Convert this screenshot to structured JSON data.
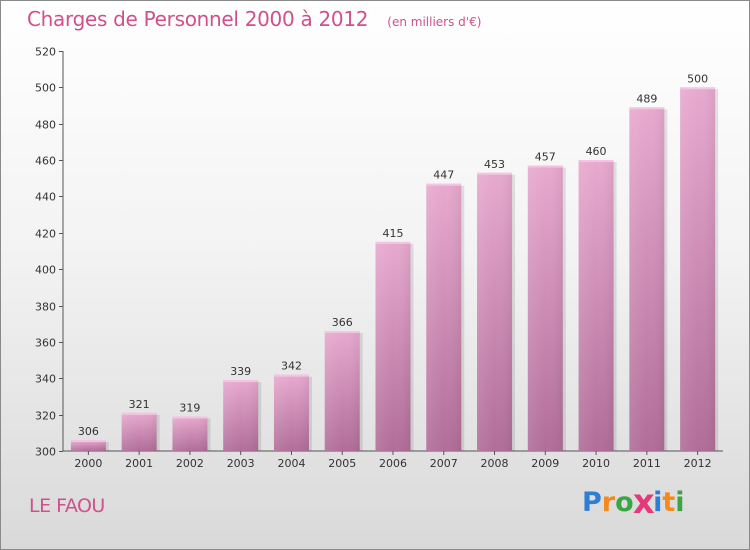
{
  "title": "Charges de Personnel 2000 à 2012",
  "subtitle": "(en milliers d'€)",
  "town": "LE FAOU",
  "logo": {
    "letters": [
      "P",
      "r",
      "o",
      "x",
      "i",
      "t",
      "i"
    ],
    "colors": [
      "#2e7fd4",
      "#f28a1e",
      "#3aa642",
      "#e23a7a",
      "#2e7fd4",
      "#f28a1e",
      "#3aa642"
    ]
  },
  "chart_data": {
    "type": "bar",
    "title": "Charges de Personnel 2000 à 2012",
    "subtitle": "(en milliers d'€)",
    "categories": [
      "2000",
      "2001",
      "2002",
      "2003",
      "2004",
      "2005",
      "2006",
      "2007",
      "2008",
      "2009",
      "2010",
      "2011",
      "2012"
    ],
    "values": [
      306,
      321,
      319,
      339,
      342,
      366,
      415,
      447,
      453,
      457,
      460,
      489,
      500
    ],
    "ylim": [
      300,
      520
    ],
    "yticks": [
      300,
      320,
      340,
      360,
      380,
      400,
      420,
      440,
      460,
      480,
      500,
      520
    ],
    "grid": false,
    "data_labels": true,
    "bar_color": "#d88fba"
  }
}
